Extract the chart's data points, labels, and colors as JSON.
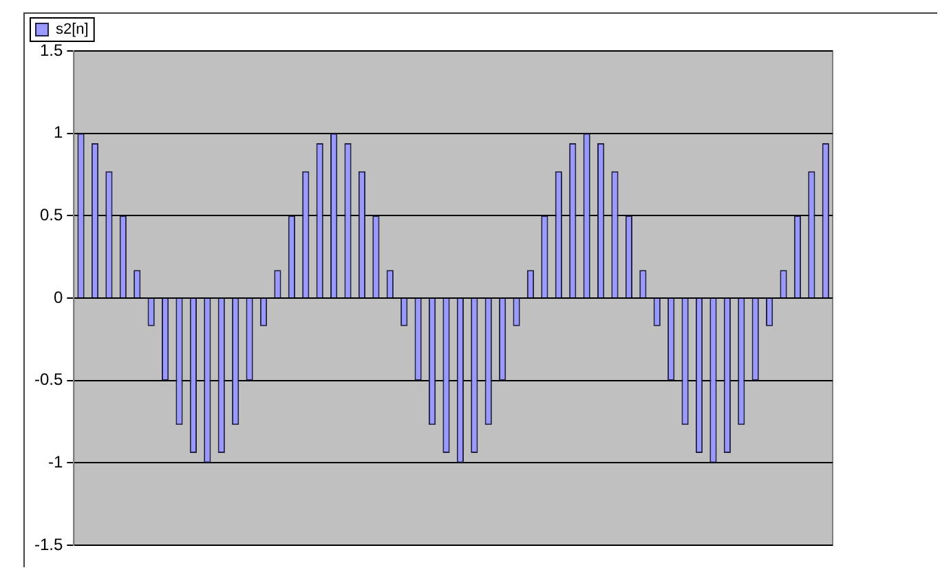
{
  "chart_data": {
    "type": "bar",
    "categories": [
      null,
      null,
      null,
      null,
      null,
      null,
      null,
      null,
      null,
      null,
      null,
      null,
      null,
      null,
      null,
      null,
      null,
      null,
      null,
      null,
      null,
      null,
      null,
      null,
      null,
      null,
      null,
      null,
      null,
      null,
      null,
      null,
      null,
      null,
      null,
      null,
      null,
      null,
      null,
      null,
      null,
      null,
      null,
      null,
      null,
      null,
      null,
      null,
      null,
      null,
      null,
      null,
      null,
      null
    ],
    "series": [
      {
        "name": "s2[n]",
        "color": "#9999ff",
        "values": [
          1,
          0.94,
          0.77,
          0.5,
          0.17,
          -0.17,
          -0.5,
          -0.77,
          -0.94,
          -1,
          -0.94,
          -0.77,
          -0.5,
          -0.17,
          0.17,
          0.5,
          0.77,
          0.94,
          1,
          0.94,
          0.77,
          0.5,
          0.17,
          -0.17,
          -0.5,
          -0.77,
          -0.94,
          -1,
          -0.94,
          -0.77,
          -0.5,
          -0.17,
          0.17,
          0.5,
          0.77,
          0.94,
          1,
          0.94,
          0.77,
          0.5,
          0.17,
          -0.17,
          -0.5,
          -0.77,
          -0.94,
          -1,
          -0.94,
          -0.77,
          -0.5,
          -0.17,
          0.17,
          0.5,
          0.77,
          0.94
        ]
      }
    ],
    "ylim": [
      -1.5,
      1.5
    ],
    "yticks": [
      -1.5,
      -1,
      -0.5,
      0,
      0.5,
      1,
      1.5
    ],
    "grid": "y",
    "legend": "top left",
    "tick_labels": "y"
  }
}
